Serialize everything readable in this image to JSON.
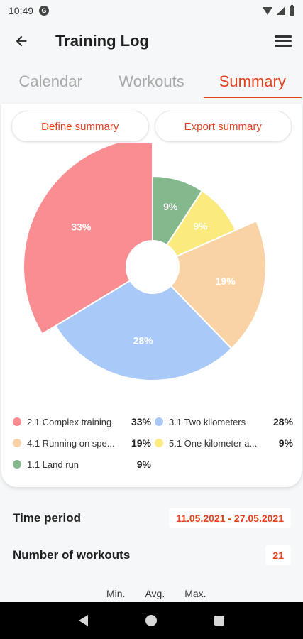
{
  "status_bar": {
    "time": "10:49",
    "left_icon": "G"
  },
  "app_bar": {
    "title": "Training Log"
  },
  "tabs": [
    {
      "label": "Calendar",
      "active": false
    },
    {
      "label": "Workouts",
      "active": false
    },
    {
      "label": "Summary",
      "active": true
    }
  ],
  "actions": {
    "define_label": "Define summary",
    "export_label": "Export summary"
  },
  "chart_data": {
    "type": "pie",
    "slices": [
      {
        "label": "1.1 Land run",
        "value": 9,
        "display": "9%",
        "color": "#83b98c"
      },
      {
        "label": "5.1 One kilometer a...",
        "value": 9,
        "display": "9%",
        "color": "#fbea7e"
      },
      {
        "label": "4.1 Running on spe...",
        "value": 19,
        "display": "19%",
        "color": "#f9d3a6"
      },
      {
        "label": "3.1 Two kilometers",
        "value": 28,
        "display": "28%",
        "color": "#a9c9f9"
      },
      {
        "label": "2.1 Complex training",
        "value": 33,
        "display": "33%",
        "color": "#f98d91"
      }
    ]
  },
  "legend": [
    {
      "label": "2.1 Complex training",
      "value": "33%",
      "color": "#f98d91"
    },
    {
      "label": "3.1 Two kilometers",
      "value": "28%",
      "color": "#a9c9f9"
    },
    {
      "label": "4.1 Running on spe...",
      "value": "19%",
      "color": "#f9d3a6"
    },
    {
      "label": "5.1 One kilometer a...",
      "value": "9%",
      "color": "#fbea7e"
    },
    {
      "label": "1.1 Land run",
      "value": "9%",
      "color": "#83b98c"
    }
  ],
  "summary": {
    "time_period_label": "Time period",
    "time_period_value": "11.05.2021 - 27.05.2021",
    "workouts_label": "Number of workouts",
    "workouts_value": "21",
    "stats_headers": [
      "Min.",
      "Avg.",
      "Max."
    ]
  },
  "colors": {
    "accent": "#e2401c"
  }
}
